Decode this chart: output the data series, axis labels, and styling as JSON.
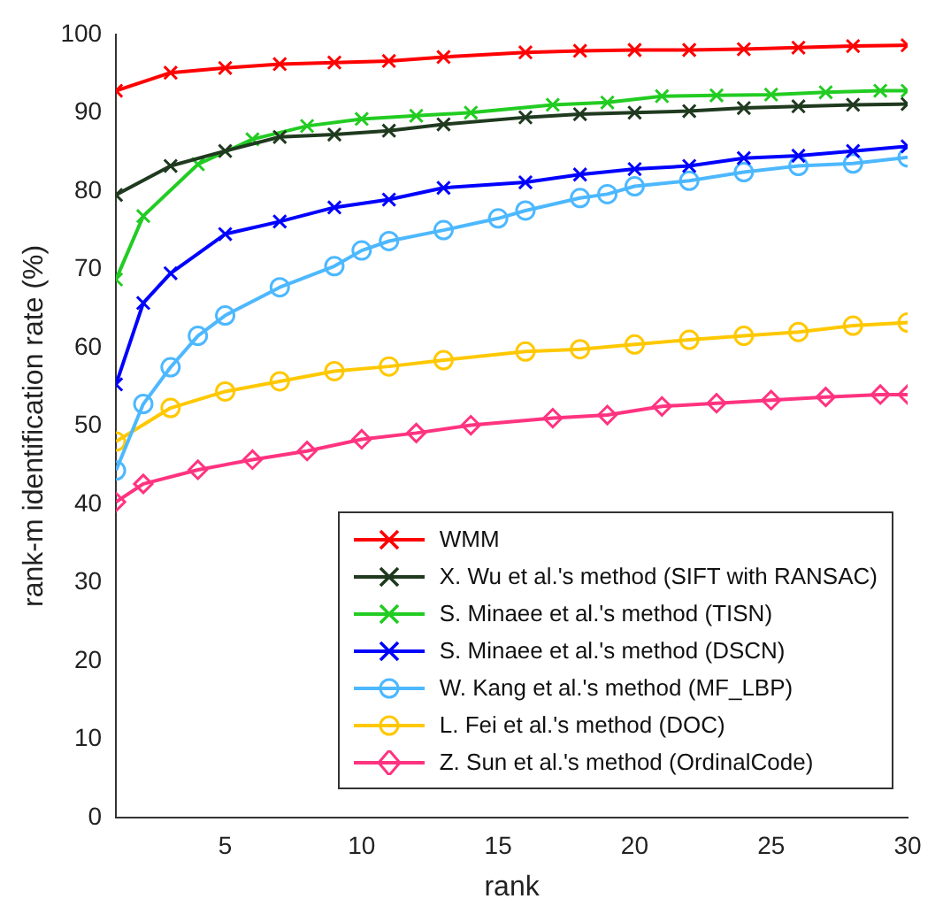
{
  "chart_data": {
    "type": "line",
    "xlabel": "rank",
    "ylabel": "rank-m identification rate (%)",
    "xlim": [
      1,
      30
    ],
    "xticks": [
      5,
      10,
      15,
      20,
      25,
      30
    ],
    "ylim": [
      0,
      100
    ],
    "yticks": [
      0,
      10,
      20,
      30,
      40,
      50,
      60,
      70,
      80,
      90,
      100
    ],
    "grid": false,
    "legend": "bottom right",
    "line_style": "solid",
    "series": [
      {
        "name": "WMM",
        "color": "#ff0000",
        "marker": "cross",
        "x": [
          1,
          3,
          5,
          7,
          9,
          11,
          13,
          16,
          18,
          20,
          22,
          24,
          26,
          28,
          30
        ],
        "values": [
          92.8,
          95.1,
          95.7,
          96.2,
          96.4,
          96.6,
          97.1,
          97.7,
          97.9,
          98.0,
          98.0,
          98.1,
          98.3,
          98.5,
          98.6
        ]
      },
      {
        "name": "X. Wu et al.'s method (SIFT with RANSAC)",
        "color": "#1f3a1f",
        "marker": "cross",
        "x": [
          1,
          3,
          5,
          7,
          9,
          11,
          13,
          16,
          18,
          20,
          22,
          24,
          26,
          28,
          30
        ],
        "values": [
          79.5,
          83.2,
          85.1,
          86.9,
          87.2,
          87.7,
          88.5,
          89.4,
          89.8,
          90.0,
          90.2,
          90.6,
          90.8,
          91.0,
          91.1
        ]
      },
      {
        "name": "S. Minaee et al.'s method (TISN)",
        "color": "#22cc22",
        "marker": "cross",
        "x": [
          1,
          2,
          4,
          6,
          8,
          10,
          12,
          14,
          17,
          19,
          21,
          23,
          25,
          27,
          29,
          30
        ],
        "values": [
          68.7,
          76.8,
          83.4,
          86.6,
          88.3,
          89.2,
          89.6,
          90.0,
          91.0,
          91.3,
          92.1,
          92.2,
          92.3,
          92.6,
          92.8,
          92.8
        ]
      },
      {
        "name": "S. Minaee et al.'s method (DSCN)",
        "color": "#0000ff",
        "marker": "cross",
        "x": [
          1,
          2,
          3,
          5,
          7,
          9,
          11,
          13,
          16,
          18,
          20,
          22,
          24,
          26,
          28,
          30
        ],
        "values": [
          55.3,
          65.7,
          69.5,
          74.5,
          76.1,
          77.9,
          78.9,
          80.4,
          81.1,
          82.1,
          82.8,
          83.2,
          84.2,
          84.5,
          85.1,
          85.7
        ]
      },
      {
        "name": "W. Kang et al.'s method (MF_LBP)",
        "color": "#4db8ff",
        "marker": "circle",
        "x": [
          1,
          2,
          3,
          4,
          5,
          7,
          9,
          10,
          11,
          13,
          15,
          16,
          18,
          19,
          20,
          22,
          24,
          26,
          28,
          30
        ],
        "values": [
          44.3,
          52.8,
          57.5,
          61.5,
          64.1,
          67.7,
          70.4,
          72.4,
          73.6,
          75.0,
          76.5,
          77.5,
          79.1,
          79.6,
          80.6,
          81.3,
          82.4,
          83.2,
          83.5,
          84.3
        ]
      },
      {
        "name": "L. Fei et al.'s method (DOC)",
        "color": "#ffc800",
        "marker": "circle",
        "x": [
          1,
          3,
          5,
          7,
          9,
          11,
          13,
          16,
          18,
          20,
          22,
          24,
          26,
          28,
          30
        ],
        "values": [
          48.0,
          52.3,
          54.4,
          55.7,
          57.0,
          57.6,
          58.4,
          59.5,
          59.8,
          60.4,
          61.0,
          61.5,
          62.0,
          62.8,
          63.2
        ]
      },
      {
        "name": "Z. Sun et al.'s method (OrdinalCode)",
        "color": "#ff3380",
        "marker": "diamond",
        "x": [
          1,
          2,
          4,
          6,
          8,
          10,
          12,
          14,
          17,
          19,
          21,
          23,
          25,
          27,
          29,
          30
        ],
        "values": [
          40.3,
          42.6,
          44.4,
          45.7,
          46.8,
          48.3,
          49.1,
          50.1,
          51.0,
          51.4,
          52.5,
          52.9,
          53.3,
          53.7,
          54.0,
          54.0
        ]
      }
    ]
  }
}
